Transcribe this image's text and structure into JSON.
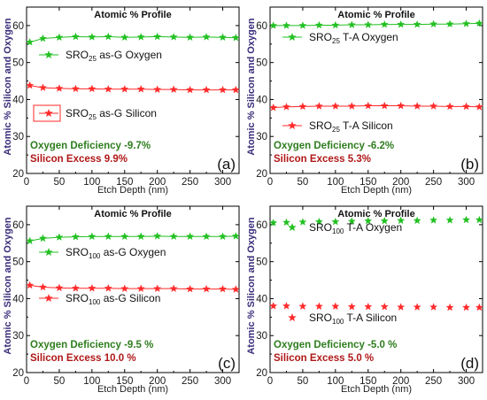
{
  "chart_data": [
    {
      "type": "line",
      "panel_label": "(a)",
      "title": "Atomic % Profile",
      "xlabel": "Etch Depth (nm)",
      "ylabel": "Atomic % Silicon and Oxygen",
      "xlim": [
        0,
        325
      ],
      "ylim": [
        20,
        65
      ],
      "xticks": [
        0,
        50,
        100,
        150,
        200,
        250,
        300
      ],
      "yticks": [
        20,
        30,
        40,
        50,
        60
      ],
      "grid": false,
      "legend_position": "upper-left",
      "annotations": [
        {
          "text": "Oxygen Deficiency -9.7%",
          "color": "#2e7d1e"
        },
        {
          "text": "Silicon Excess 9.9%",
          "color": "#b01818"
        }
      ],
      "series": [
        {
          "name_main": "SRO",
          "name_sub": "25",
          "name_rest": " as-G Oxygen",
          "color": "#22c022",
          "legend_boxed": false,
          "x": [
            5,
            25,
            50,
            75,
            100,
            125,
            150,
            175,
            200,
            225,
            250,
            275,
            300,
            320
          ],
          "y": [
            55.5,
            56.5,
            56.8,
            57.0,
            56.9,
            57.0,
            56.8,
            56.9,
            57.0,
            56.9,
            56.8,
            56.9,
            56.8,
            56.7
          ]
        },
        {
          "name_main": "SRO",
          "name_sub": "25",
          "name_rest": " as-G Silicon",
          "color": "#ff2a2a",
          "legend_boxed": true,
          "x": [
            5,
            25,
            50,
            75,
            100,
            125,
            150,
            175,
            200,
            225,
            250,
            275,
            300,
            320
          ],
          "y": [
            43.8,
            43.2,
            43.0,
            42.9,
            42.9,
            42.8,
            42.8,
            42.8,
            42.7,
            42.7,
            42.6,
            42.6,
            42.6,
            42.6
          ]
        }
      ]
    },
    {
      "type": "line",
      "panel_label": "(b)",
      "title": "Atomic % Profile",
      "xlabel": "Etch Depth (nm)",
      "ylabel": "Atomic % Silicon and Oxygen",
      "xlim": [
        0,
        325
      ],
      "ylim": [
        20,
        65
      ],
      "xticks": [
        0,
        50,
        100,
        150,
        200,
        250,
        300
      ],
      "yticks": [
        20,
        30,
        40,
        50,
        60
      ],
      "grid": false,
      "legend_position": "upper-left",
      "annotations": [
        {
          "text": "Oxygen Deficiency -6.2%",
          "color": "#2e7d1e"
        },
        {
          "text": "Silicon Excess 5.3%",
          "color": "#b01818"
        }
      ],
      "series": [
        {
          "name_main": "SRO",
          "name_sub": "25",
          "name_rest": " T-A Oxygen",
          "color": "#22c022",
          "legend_boxed": false,
          "x": [
            5,
            25,
            50,
            75,
            100,
            125,
            150,
            175,
            200,
            225,
            250,
            275,
            300,
            320
          ],
          "y": [
            60.0,
            60.0,
            60.0,
            60.1,
            60.1,
            60.2,
            60.2,
            60.3,
            60.3,
            60.3,
            60.4,
            60.4,
            60.5,
            60.6
          ]
        },
        {
          "name_main": "SRO",
          "name_sub": "25",
          "name_rest": " T-A Silicon",
          "color": "#ff2a2a",
          "legend_boxed": false,
          "x": [
            5,
            25,
            50,
            75,
            100,
            125,
            150,
            175,
            200,
            225,
            250,
            275,
            300,
            320
          ],
          "y": [
            37.8,
            38.0,
            38.1,
            38.2,
            38.2,
            38.2,
            38.3,
            38.3,
            38.3,
            38.2,
            38.2,
            38.1,
            38.1,
            38.0
          ]
        }
      ]
    },
    {
      "type": "line",
      "panel_label": "(c)",
      "title": "Atomic % Profile",
      "xlabel": "Etch Depth (nm)",
      "ylabel": "Atomic % Silicon and Oxygen",
      "xlim": [
        0,
        325
      ],
      "ylim": [
        20,
        65
      ],
      "xticks": [
        0,
        50,
        100,
        150,
        200,
        250,
        300
      ],
      "yticks": [
        20,
        30,
        40,
        50,
        60
      ],
      "grid": false,
      "legend_position": "upper-left",
      "annotations": [
        {
          "text": "Oxygen Deficiency -9.5 %",
          "color": "#2e7d1e"
        },
        {
          "text": "Silicon Excess 10.0 %",
          "color": "#b01818"
        }
      ],
      "series": [
        {
          "name_main": "SRO",
          "name_sub": "100",
          "name_rest": " as-G Oxygen",
          "color": "#22c022",
          "legend_boxed": false,
          "x": [
            5,
            25,
            50,
            75,
            100,
            125,
            150,
            175,
            200,
            225,
            250,
            275,
            300,
            320
          ],
          "y": [
            55.6,
            56.3,
            56.6,
            56.7,
            56.8,
            56.8,
            56.8,
            56.8,
            56.9,
            56.8,
            56.8,
            56.8,
            56.8,
            56.9
          ]
        },
        {
          "name_main": "SRO",
          "name_sub": "100",
          "name_rest": " as-G Silicon",
          "color": "#ff2a2a",
          "legend_boxed": false,
          "x": [
            5,
            25,
            50,
            75,
            100,
            125,
            150,
            175,
            200,
            225,
            250,
            275,
            300,
            320
          ],
          "y": [
            43.6,
            43.1,
            42.9,
            42.8,
            42.8,
            42.8,
            42.7,
            42.7,
            42.7,
            42.7,
            42.6,
            42.6,
            42.6,
            42.5
          ]
        }
      ]
    },
    {
      "type": "scatter",
      "panel_label": "(d)",
      "title": "Atomic % Profile",
      "xlabel": "Etch Depth (nm)",
      "ylabel": "Atomic % Silicon and Oxygen",
      "xlim": [
        0,
        325
      ],
      "ylim": [
        20,
        65
      ],
      "xticks": [
        0,
        50,
        100,
        150,
        200,
        250,
        300
      ],
      "yticks": [
        20,
        30,
        40,
        50,
        60
      ],
      "grid": false,
      "legend_position": "upper-left",
      "annotations": [
        {
          "text": "Oxygen Deficiency -5.0 %",
          "color": "#2e7d1e"
        },
        {
          "text": "Silicon Excess 5.0 %",
          "color": "#b01818"
        }
      ],
      "series": [
        {
          "name_main": "SRO",
          "name_sub": "100",
          "name_rest": " T-A Oxygen",
          "color": "#22c022",
          "legend_boxed": false,
          "x": [
            5,
            25,
            50,
            75,
            100,
            125,
            150,
            175,
            200,
            225,
            250,
            275,
            300,
            320
          ],
          "y": [
            60.5,
            60.6,
            60.7,
            60.8,
            60.8,
            60.9,
            61.0,
            61.0,
            61.1,
            61.1,
            61.2,
            61.2,
            61.3,
            61.3
          ]
        },
        {
          "name_main": "SRO",
          "name_sub": "100",
          "name_rest": " T-A Silicon",
          "color": "#ff2a2a",
          "legend_boxed": false,
          "x": [
            5,
            25,
            50,
            75,
            100,
            125,
            150,
            175,
            200,
            225,
            250,
            275,
            300,
            320
          ],
          "y": [
            38.0,
            38.0,
            37.9,
            37.9,
            37.9,
            37.8,
            37.8,
            37.8,
            37.7,
            37.7,
            37.7,
            37.6,
            37.6,
            37.6
          ]
        }
      ]
    }
  ]
}
